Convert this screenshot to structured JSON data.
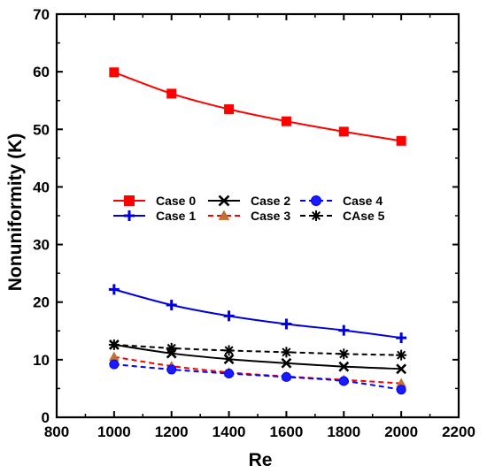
{
  "chart_data": {
    "type": "line",
    "title": "",
    "xlabel": "Re",
    "ylabel": "Nonuniformity (K)",
    "xlim": [
      800,
      2200
    ],
    "ylim": [
      0,
      70
    ],
    "xticks": [
      800,
      1000,
      1200,
      1400,
      1600,
      1800,
      2000,
      2200
    ],
    "yticks": [
      0,
      10,
      20,
      30,
      40,
      50,
      60,
      70
    ],
    "x": [
      1000,
      1200,
      1400,
      1600,
      1800,
      2000
    ],
    "grid": false,
    "legend_placement": "center-left, two rows",
    "series": [
      {
        "name": "Case 0",
        "values": [
          59.9,
          56.2,
          53.5,
          51.4,
          49.6,
          48.0
        ],
        "color": "#ff0000",
        "marker": "square",
        "dash": "solid",
        "marker_fill": "#ff0000"
      },
      {
        "name": "Case 1",
        "values": [
          22.2,
          19.5,
          17.6,
          16.2,
          15.1,
          13.8
        ],
        "color": "#0000dd",
        "marker": "plus",
        "dash": "solid",
        "marker_fill": "#0000dd"
      },
      {
        "name": "Case 2",
        "values": [
          12.6,
          11.1,
          10.1,
          9.4,
          8.8,
          8.4
        ],
        "color": "#000000",
        "marker": "x",
        "dash": "solid",
        "marker_fill": "#000000"
      },
      {
        "name": "Case 3",
        "values": [
          10.5,
          8.9,
          7.8,
          7.1,
          6.5,
          5.9
        ],
        "color": "#ff0000",
        "marker": "triangle",
        "dash": "dashed",
        "marker_fill": "#c07030"
      },
      {
        "name": "Case 4",
        "values": [
          9.2,
          8.3,
          7.6,
          7.0,
          6.3,
          4.8
        ],
        "color": "#0000ff",
        "marker": "circle",
        "dash": "dashed",
        "marker_fill": "#1a1aff"
      },
      {
        "name": "CAse 5",
        "values": [
          12.6,
          12.0,
          11.6,
          11.3,
          11.0,
          10.8
        ],
        "color": "#000000",
        "marker": "star",
        "dash": "dashed",
        "marker_fill": "#000000"
      }
    ],
    "legend_order": [
      0,
      2,
      4,
      1,
      3,
      5
    ]
  }
}
